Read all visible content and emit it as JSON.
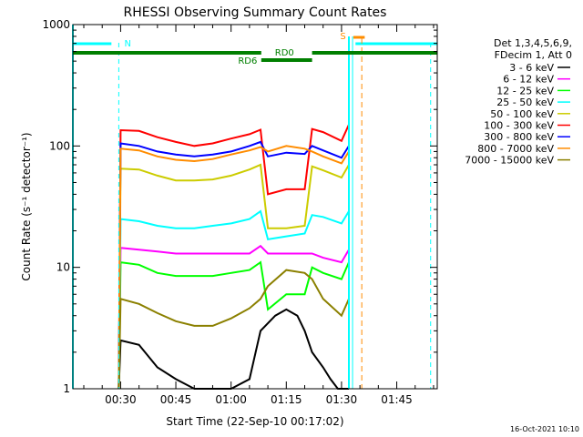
{
  "chart_data": {
    "type": "line",
    "title": "RHESSI Observing Summary Count Rates",
    "xlabel": "Start Time (22-Sep-10 00:17:02)",
    "ylabel": "Count Rate (s⁻¹ detector⁻¹)",
    "yscale": "log",
    "ylim": [
      1,
      1000
    ],
    "xlim_minutes": [
      17.03,
      116.0
    ],
    "y_ticks": [
      {
        "value": 1,
        "label": "1"
      },
      {
        "value": 10,
        "label": "10"
      },
      {
        "value": 100,
        "label": "100"
      },
      {
        "value": 1000,
        "label": "1000"
      }
    ],
    "x_ticks": [
      {
        "value": 30,
        "label": "00:30"
      },
      {
        "value": 45,
        "label": "00:45"
      },
      {
        "value": 60,
        "label": "01:00"
      },
      {
        "value": 75,
        "label": "01:15"
      },
      {
        "value": 90,
        "label": "01:30"
      },
      {
        "value": 105,
        "label": "01:45"
      }
    ],
    "legend_header": [
      "Det 1,3,4,5,6,9,",
      "FDecim 1, Att 0"
    ],
    "series": [
      {
        "name": "3 - 6 keV",
        "color": "#000000",
        "x": [
          29.5,
          30,
          35,
          40,
          45,
          50,
          52,
          55,
          60,
          65,
          68,
          72,
          75,
          78,
          80,
          82,
          85,
          87,
          89,
          90,
          91,
          92
        ],
        "y": [
          1,
          2.5,
          2.3,
          1.5,
          1.2,
          1.0,
          1.0,
          1.0,
          1.0,
          1.2,
          3.0,
          4.0,
          4.5,
          4.0,
          3.0,
          2.0,
          1.5,
          1.2,
          1.0,
          1.0,
          1.0,
          1.0
        ]
      },
      {
        "name": "6 - 12 keV",
        "color": "#ff00ff",
        "x": [
          29.5,
          30,
          35,
          40,
          45,
          50,
          55,
          60,
          65,
          68,
          70,
          75,
          80,
          82,
          85,
          90,
          92
        ],
        "y": [
          1,
          14.5,
          14,
          13.5,
          13,
          13,
          13,
          13,
          13,
          15,
          13,
          13,
          13,
          13,
          12,
          11,
          14
        ]
      },
      {
        "name": "12 - 25 keV",
        "color": "#00ff00",
        "x": [
          29.5,
          30,
          35,
          40,
          45,
          50,
          55,
          60,
          65,
          68,
          70,
          75,
          80,
          82,
          85,
          90,
          92
        ],
        "y": [
          1,
          11,
          10.5,
          9,
          8.5,
          8.5,
          8.5,
          9,
          9.5,
          11,
          4.5,
          6,
          6,
          10,
          9,
          8,
          11
        ]
      },
      {
        "name": "25 - 50 keV",
        "color": "#00ffff",
        "x": [
          29.5,
          30,
          35,
          40,
          45,
          50,
          55,
          60,
          65,
          68,
          70,
          75,
          80,
          82,
          85,
          90,
          92
        ],
        "y": [
          1,
          25,
          24,
          22,
          21,
          21,
          22,
          23,
          25,
          29,
          17,
          18,
          19,
          27,
          26,
          23,
          29
        ]
      },
      {
        "name": "50 - 100 keV",
        "color": "#cccc00",
        "x": [
          29.5,
          30,
          35,
          40,
          45,
          50,
          55,
          60,
          65,
          68,
          70,
          75,
          80,
          82,
          85,
          90,
          92
        ],
        "y": [
          1,
          65,
          64,
          57,
          52,
          52,
          53,
          57,
          64,
          70,
          21,
          21,
          22,
          68,
          63,
          55,
          70
        ]
      },
      {
        "name": "100 - 300 keV",
        "color": "#ff0000",
        "x": [
          29.5,
          30,
          35,
          40,
          45,
          50,
          55,
          60,
          65,
          68,
          70,
          75,
          80,
          82,
          85,
          90,
          92
        ],
        "y": [
          1,
          135,
          133,
          118,
          108,
          100,
          105,
          115,
          125,
          136,
          40,
          44,
          44,
          138,
          130,
          110,
          150
        ]
      },
      {
        "name": "300 - 800 keV",
        "color": "#0000ff",
        "x": [
          29.5,
          30,
          35,
          40,
          45,
          50,
          55,
          60,
          65,
          68,
          70,
          75,
          80,
          82,
          85,
          90,
          92
        ],
        "y": [
          1,
          105,
          100,
          90,
          85,
          82,
          85,
          90,
          100,
          108,
          82,
          88,
          86,
          100,
          92,
          80,
          100
        ]
      },
      {
        "name": "800 - 7000 keV",
        "color": "#ff8c00",
        "x": [
          29.5,
          30,
          35,
          40,
          45,
          50,
          55,
          60,
          65,
          68,
          70,
          75,
          80,
          82,
          85,
          90,
          92
        ],
        "y": [
          1,
          95,
          92,
          82,
          77,
          75,
          78,
          85,
          92,
          98,
          90,
          100,
          95,
          90,
          82,
          72,
          90
        ]
      },
      {
        "name": "7000 - 15000 keV",
        "color": "#8b8000",
        "x": [
          29.5,
          30,
          35,
          40,
          45,
          50,
          55,
          60,
          65,
          68,
          70,
          75,
          80,
          82,
          85,
          90,
          92
        ],
        "y": [
          1,
          5.5,
          5.0,
          4.2,
          3.6,
          3.3,
          3.3,
          3.8,
          4.6,
          5.5,
          7.0,
          9.5,
          9.0,
          8.0,
          5.5,
          4.0,
          5.5
        ]
      }
    ],
    "annotations": [
      {
        "label": "N",
        "color": "#00ffff"
      },
      {
        "label": "RD0",
        "color": "#007f00"
      },
      {
        "label": "RD6",
        "color": "#007f00"
      },
      {
        "label": "S",
        "color": "#ff8c00"
      }
    ],
    "footer": "16-Oct-2021 10:10"
  }
}
